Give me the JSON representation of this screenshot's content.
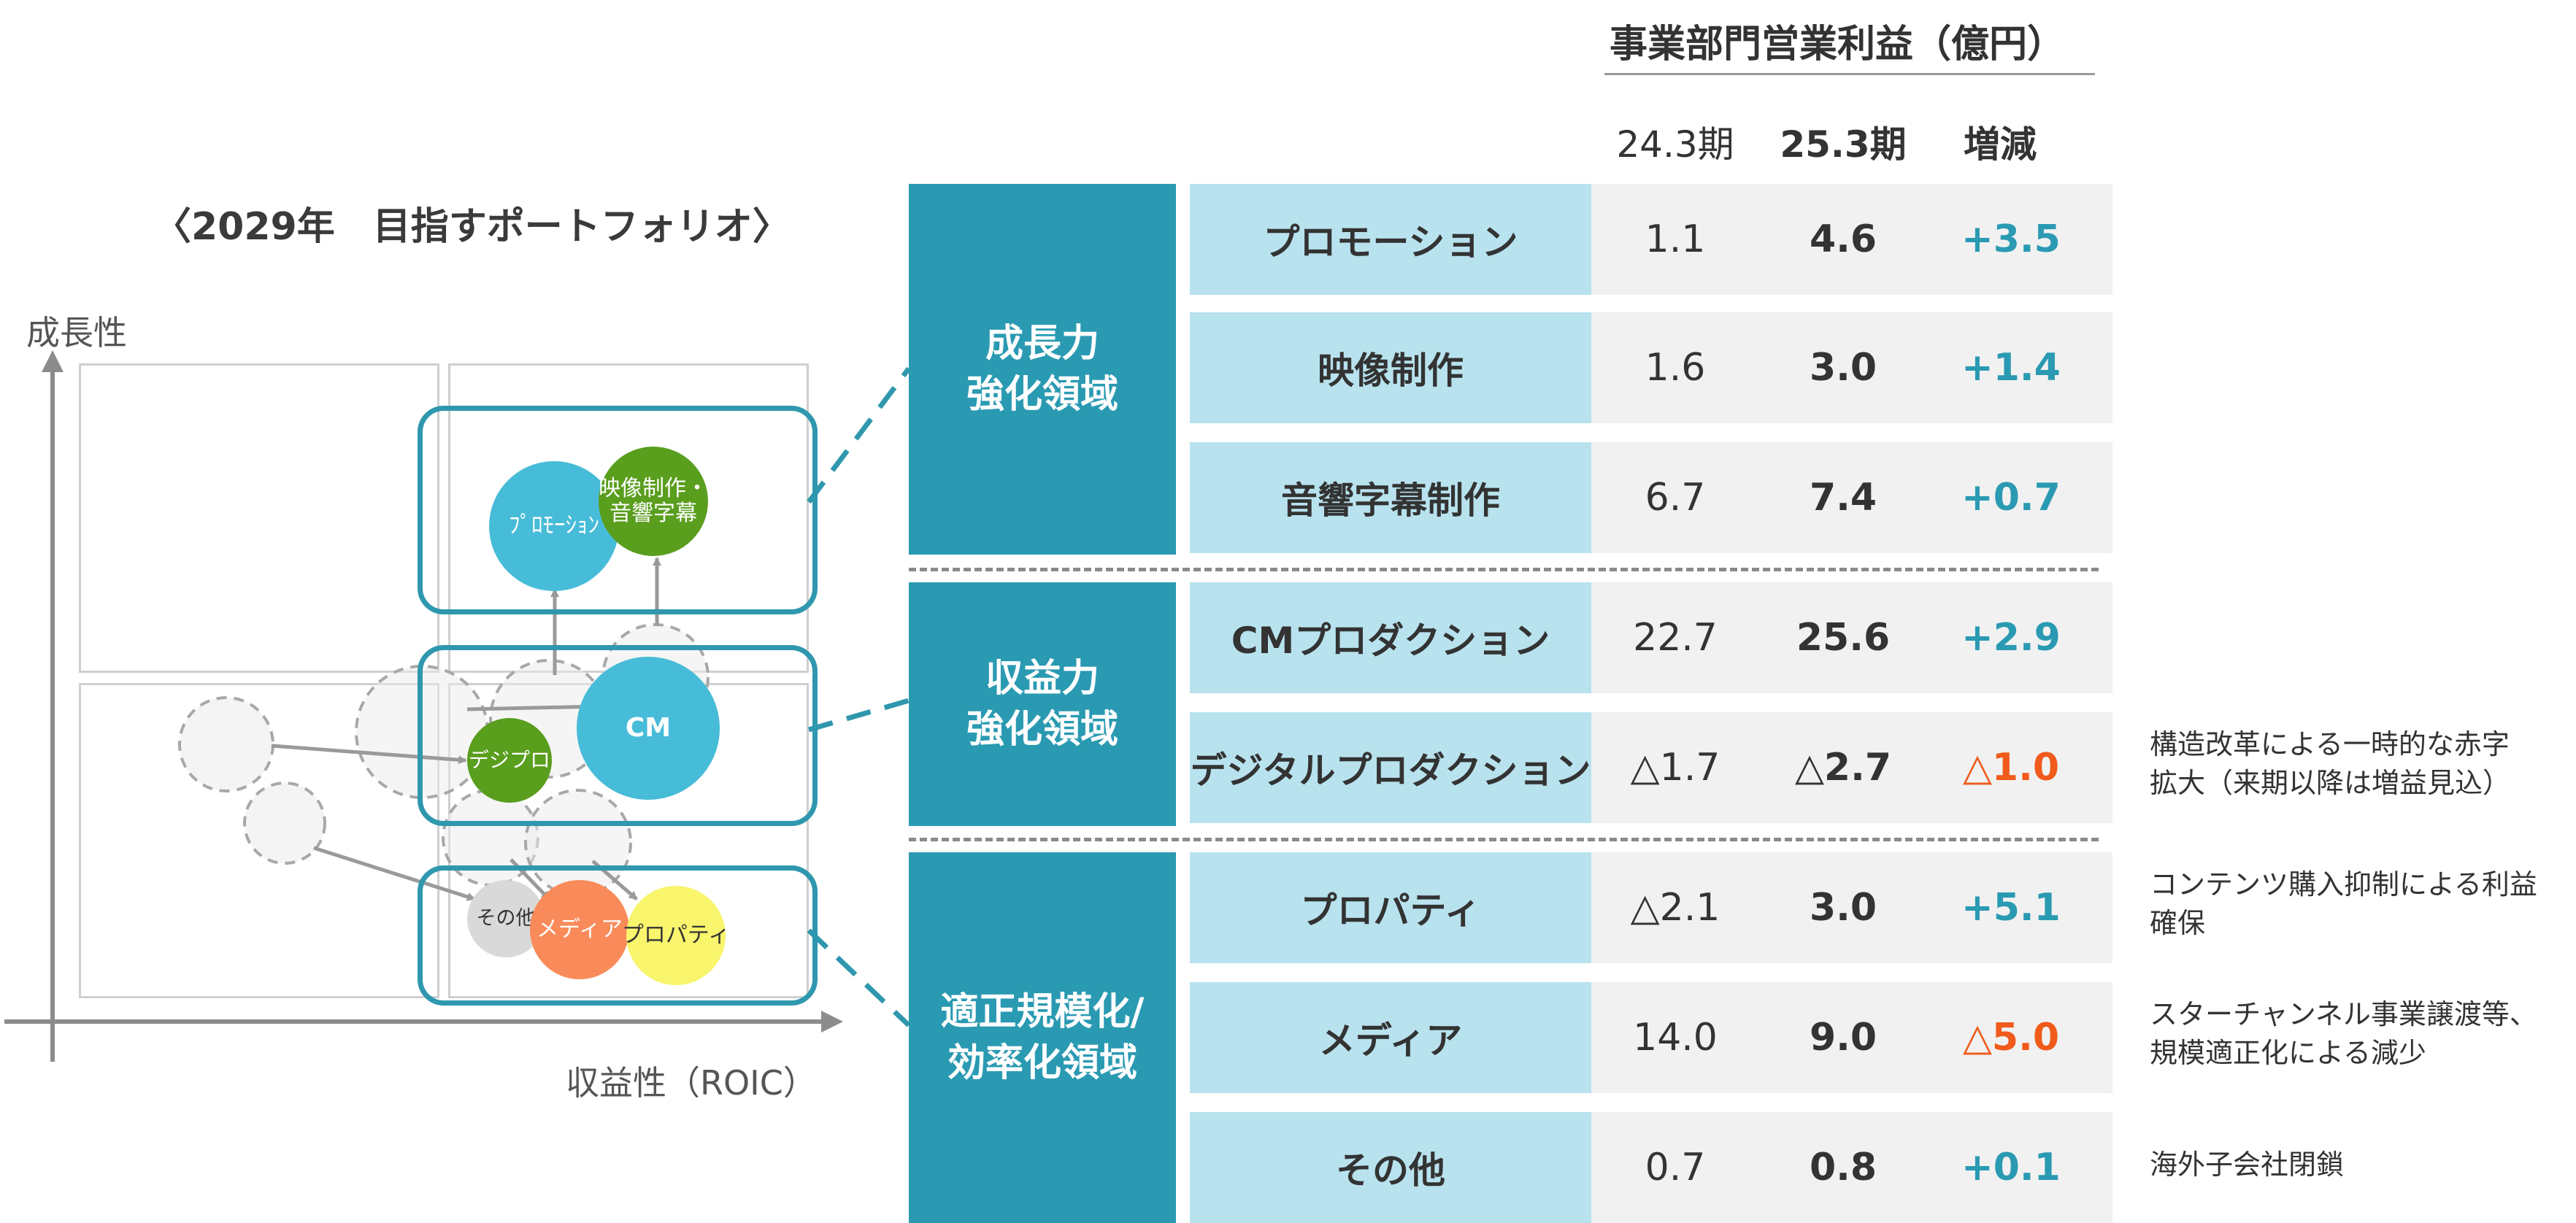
{
  "portfolio": {
    "title": "〈2029年　目指すポートフォリオ〉",
    "y_axis_label": "成長性",
    "x_axis_label": "収益性（ROIC）",
    "bubbles": {
      "promotion": "ﾌﾟﾛﾓｰｼｮﾝ",
      "video_line1": "映像制作・",
      "video_line2": "音響字幕",
      "cm": "CM",
      "digital": "デジプロ",
      "other": "その他",
      "media": "メディア",
      "property": "プロパティ"
    },
    "colors": {
      "promotion": "#47bcd8",
      "video": "#5a9e1e",
      "cm": "#47bcd8",
      "digital": "#5a9e1e",
      "other": "#d9d9d9",
      "media": "#f98b5a",
      "property": "#f9f56d",
      "highlight": "#2f97ae"
    }
  },
  "table": {
    "title": "事業部門営業利益（億円）",
    "headers": {
      "prev": "24.3期",
      "curr": "25.3期",
      "diff": "増減"
    },
    "groups": [
      {
        "line1": "成長力",
        "line2": "強化領域"
      },
      {
        "line1": "収益力",
        "line2": "強化領域"
      },
      {
        "line1": "適正規模化/",
        "line2": "効率化領域"
      }
    ],
    "rows": [
      {
        "segment": "プロモーション",
        "prev": "1.1",
        "curr": "4.6",
        "diff": "+3.5",
        "note1": "",
        "note2": ""
      },
      {
        "segment": "映像制作",
        "prev": "1.6",
        "curr": "3.0",
        "diff": "+1.4",
        "note1": "",
        "note2": ""
      },
      {
        "segment": "音響字幕制作",
        "prev": "6.7",
        "curr": "7.4",
        "diff": "+0.7",
        "note1": "",
        "note2": ""
      },
      {
        "segment": "CMプロダクション",
        "prev": "22.7",
        "curr": "25.6",
        "diff": "+2.9",
        "note1": "",
        "note2": ""
      },
      {
        "segment": "デジタルプロダクション",
        "prev": "△1.7",
        "curr": "△2.7",
        "diff": "△1.0",
        "note1": "構造改革による一時的な赤字",
        "note2": "拡大（来期以降は増益見込）"
      },
      {
        "segment": "プロパティ",
        "prev": "△2.1",
        "curr": "3.0",
        "diff": "+5.1",
        "note1": "コンテンツ購入抑制による利益",
        "note2": "確保"
      },
      {
        "segment": "メディア",
        "prev": "14.0",
        "curr": "9.0",
        "diff": "△5.0",
        "note1": "スターチャンネル事業譲渡等、",
        "note2": "規模適正化による減少"
      },
      {
        "segment": "その他",
        "prev": "0.7",
        "curr": "0.8",
        "diff": "+0.1",
        "note1": "海外子会社閉鎖",
        "note2": ""
      }
    ],
    "colors": {
      "group_bg": "#2a9ab2",
      "segment_bg": "#b8e2ee",
      "value_bg": "#f1f1f1",
      "positive": "#2a9ab2",
      "negative": "#f05a1a"
    }
  }
}
